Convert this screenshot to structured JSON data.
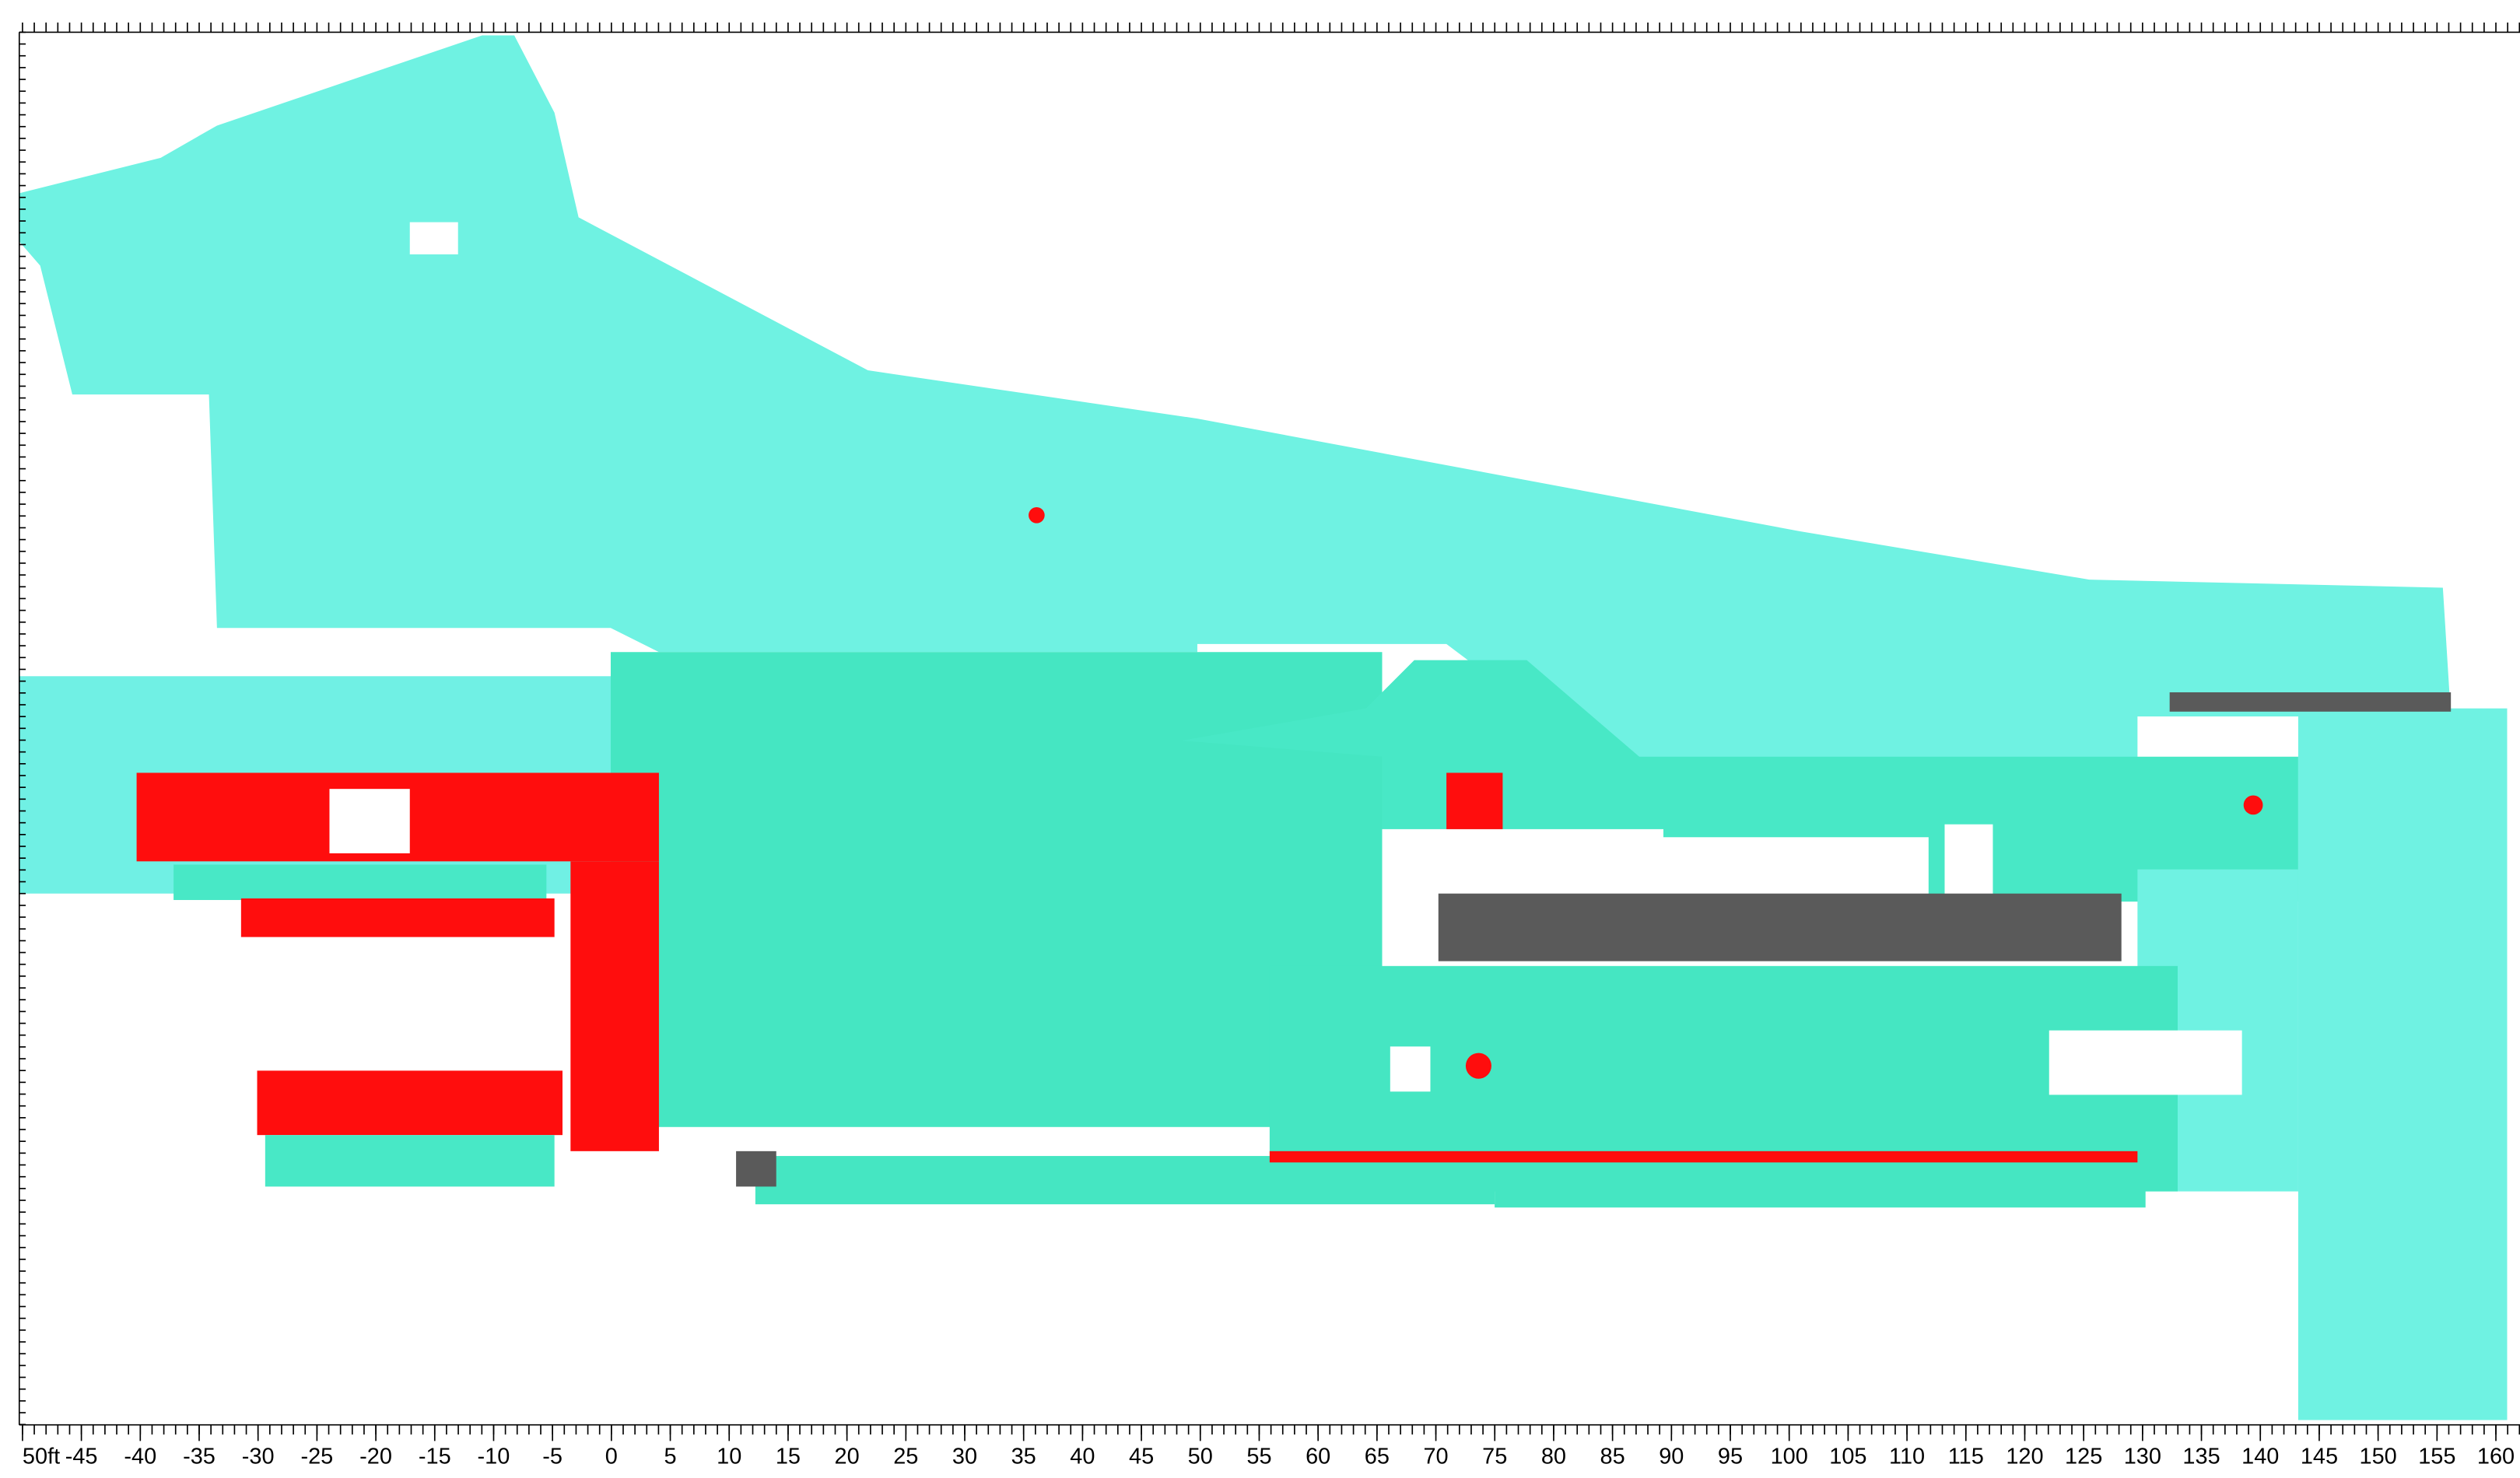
{
  "ruler": {
    "xlim": [
      -50,
      160
    ],
    "ticks": [
      {
        "value": -50,
        "label": "50ft"
      },
      -45,
      -40,
      -35,
      -30,
      -25,
      -20,
      -15,
      -10,
      -5,
      0,
      5,
      10,
      15,
      20,
      25,
      30,
      35,
      40,
      45,
      50,
      55,
      60,
      65,
      70,
      75,
      80,
      85,
      90,
      95,
      100,
      105,
      110,
      115,
      120,
      125,
      130,
      135,
      140,
      145,
      150,
      155,
      160
    ]
  }
}
